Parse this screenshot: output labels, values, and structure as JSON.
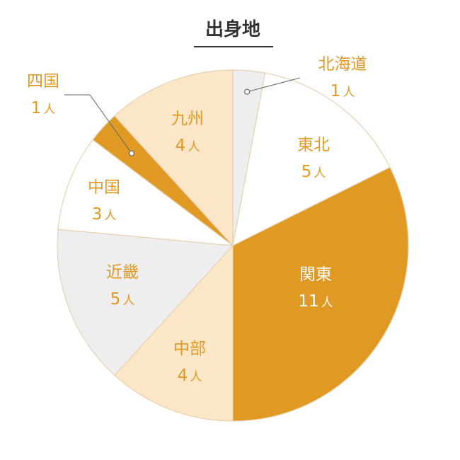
{
  "chart_data": {
    "type": "pie",
    "title": "出身地",
    "unit": "人",
    "slices": [
      {
        "name": "北海道",
        "value": 1,
        "color": "#eeeeee",
        "label_color": "#e09a24"
      },
      {
        "name": "東北",
        "value": 5,
        "color": "#ffffff",
        "label_color": "#e09a24"
      },
      {
        "name": "関東",
        "value": 11,
        "color": "#e09a24",
        "label_color": "#ffffff"
      },
      {
        "name": "中部",
        "value": 4,
        "color": "#fbe6c8",
        "label_color": "#e09a24"
      },
      {
        "name": "近畿",
        "value": 5,
        "color": "#eeeeee",
        "label_color": "#e09a24"
      },
      {
        "name": "中国",
        "value": 3,
        "color": "#ffffff",
        "label_color": "#e09a24"
      },
      {
        "name": "四国",
        "value": 1,
        "color": "#e09a24",
        "label_color": "#e09a24"
      },
      {
        "name": "九州",
        "value": 4,
        "color": "#fbe6c8",
        "label_color": "#e09a24"
      }
    ],
    "start_angle_deg": 0,
    "direction": "clockwise"
  },
  "colors": {
    "accent": "#e09a24",
    "stroke": "#e6d2b2",
    "title_text": "#333333",
    "leader": "#666666"
  }
}
